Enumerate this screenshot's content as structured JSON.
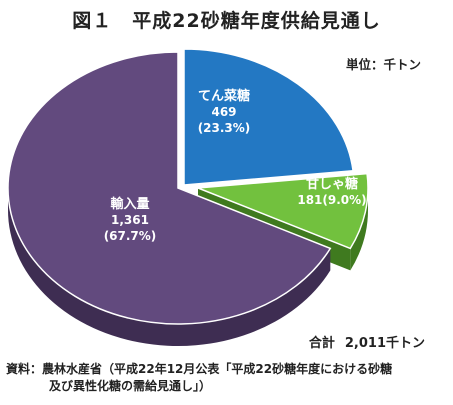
{
  "title": "図１　平成22砂糖年度供給見通し",
  "unit_label": "単位：千トン",
  "total": {
    "label": "合計",
    "value": "2,011千トン"
  },
  "source": {
    "line1": "資料：農林水産省（平成22年12月公表「平成22砂糖年度における砂糖",
    "line2": "及び異性化糖の需給見通し」）"
  },
  "chart_data": {
    "type": "pie",
    "style": "3d-exploded",
    "title": "平成22砂糖年度供給見通し",
    "unit": "千トン",
    "slices": [
      {
        "name": "てん菜糖",
        "value": 469,
        "value_label": "469",
        "percent_label": "(23.3%)",
        "color": "#2378c3",
        "side_color": "#174e80"
      },
      {
        "name": "甘しゃ糖",
        "value": 181,
        "value_label": "181(9.0%)",
        "percent_label": "",
        "color": "#72c13e",
        "side_color": "#3f7a1f"
      },
      {
        "name": "輸入量",
        "value": 1361,
        "value_label": "1,361",
        "percent_label": "(67.7%)",
        "color": "#624a7e",
        "side_color": "#3e2d52"
      }
    ],
    "total": 2011,
    "total_label": "2,011千トン"
  }
}
